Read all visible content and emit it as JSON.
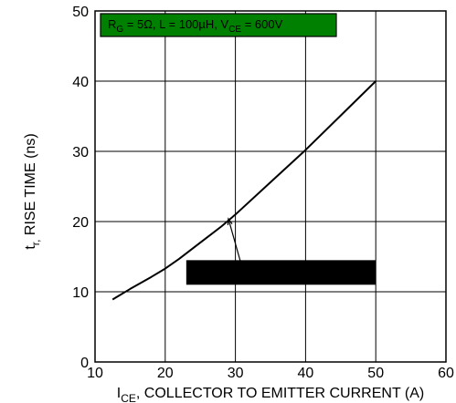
{
  "chart_data": {
    "type": "line",
    "xlim": [
      10,
      60
    ],
    "ylim": [
      0,
      50
    ],
    "x_ticks": [
      10,
      20,
      30,
      40,
      50,
      60
    ],
    "y_ticks": [
      0,
      10,
      20,
      30,
      40,
      50
    ],
    "x_tick_labels": [
      "10",
      "20",
      "30",
      "40",
      "50",
      "60"
    ],
    "y_tick_labels": [
      "0",
      "10",
      "20",
      "30",
      "40",
      "50"
    ],
    "grid": true,
    "xlabel": {
      "prefix": "I",
      "sub": "CE",
      "rest": ", COLLECTOR TO EMITTER CURRENT (A)"
    },
    "ylabel": {
      "prefix": "t",
      "sub": "r,",
      "rest": " RISE TIME (ns)"
    },
    "conditions_box": {
      "position": "top-left",
      "color": "#008000",
      "parts": [
        {
          "t": "R",
          "s": ""
        },
        {
          "t": "G",
          "s": "sub"
        },
        {
          "t": " = 5Ω, L = 100µH, V",
          "s": ""
        },
        {
          "t": "CE",
          "s": "sub"
        },
        {
          "t": " = 600V",
          "s": ""
        }
      ]
    },
    "series": [
      {
        "color": "#000000",
        "x": [
          12.5,
          15,
          18,
          20,
          22,
          25,
          28,
          30,
          35,
          40,
          45,
          50
        ],
        "y": [
          8.9,
          10.4,
          12.1,
          13.3,
          14.7,
          17.0,
          19.3,
          21.0,
          25.6,
          30.2,
          35.1,
          40.0
        ]
      }
    ],
    "annotations": [
      {
        "type": "redaction-box",
        "color": "#000000",
        "x": [
          23,
          50
        ],
        "y": [
          11,
          14.5
        ]
      },
      {
        "type": "pointer",
        "from": [
          31.2,
          12.6
        ],
        "to": [
          29.0,
          20.4
        ]
      }
    ]
  }
}
